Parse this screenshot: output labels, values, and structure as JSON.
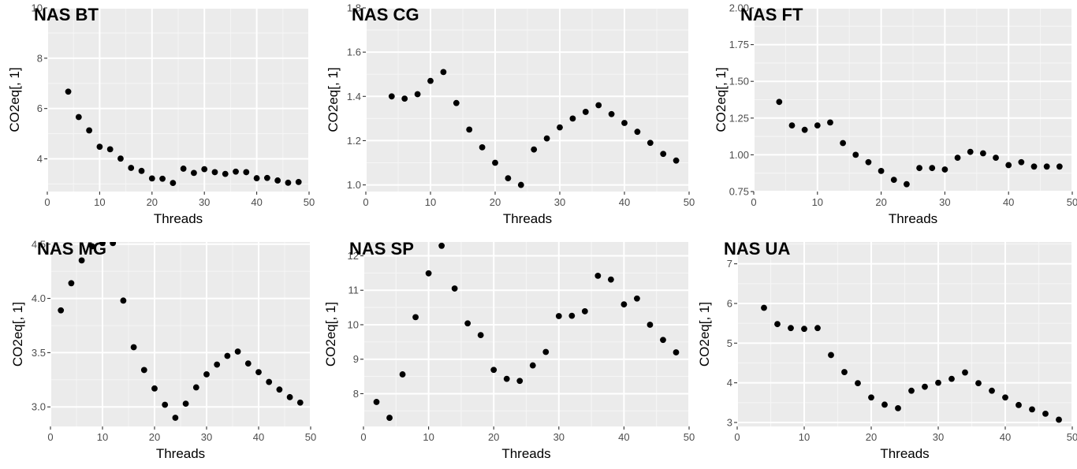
{
  "chart_data": [
    {
      "type": "scatter",
      "title": "NAS BT",
      "xlabel": "Threads",
      "ylabel": "CO2eq[, 1]",
      "xlim": [
        0,
        50
      ],
      "ylim": [
        2.7,
        10
      ],
      "xticks": [
        "0",
        "10",
        "20",
        "30",
        "40",
        "50"
      ],
      "yticks": [
        "4",
        "6",
        "8",
        "10"
      ],
      "grid": true,
      "x": [
        4,
        6,
        8,
        10,
        12,
        14,
        16,
        18,
        20,
        22,
        24,
        26,
        28,
        30,
        32,
        34,
        36,
        38,
        40,
        42,
        44,
        46,
        48
      ],
      "y": [
        6.67,
        5.66,
        5.13,
        4.48,
        4.38,
        4.01,
        3.64,
        3.52,
        3.22,
        3.21,
        3.04,
        3.61,
        3.44,
        3.59,
        3.47,
        3.4,
        3.49,
        3.47,
        3.23,
        3.24,
        3.14,
        3.05,
        3.08
      ]
    },
    {
      "type": "scatter",
      "title": "NAS CG",
      "xlabel": "Threads",
      "ylabel": "CO2eq[, 1]",
      "xlim": [
        0,
        50
      ],
      "ylim": [
        0.97,
        1.8
      ],
      "xticks": [
        "0",
        "10",
        "20",
        "30",
        "40",
        "50"
      ],
      "yticks": [
        "1.0",
        "1.2",
        "1.4",
        "1.6",
        "1.8"
      ],
      "grid": true,
      "x": [
        4,
        6,
        8,
        10,
        12,
        14,
        16,
        18,
        20,
        22,
        24,
        26,
        28,
        30,
        32,
        34,
        36,
        38,
        40,
        42,
        44,
        46,
        48
      ],
      "y": [
        1.4,
        1.39,
        1.41,
        1.47,
        1.51,
        1.37,
        1.25,
        1.17,
        1.1,
        1.03,
        1.0,
        1.16,
        1.21,
        1.26,
        1.3,
        1.33,
        1.36,
        1.32,
        1.28,
        1.24,
        1.19,
        1.14,
        1.11
      ]
    },
    {
      "type": "scatter",
      "title": "NAS FT",
      "xlabel": "Threads",
      "ylabel": "CO2eq[, 1]",
      "xlim": [
        0,
        50
      ],
      "ylim": [
        0.75,
        2.0
      ],
      "xticks": [
        "0",
        "10",
        "20",
        "30",
        "40",
        "50"
      ],
      "yticks": [
        "0.75",
        "1.00",
        "1.25",
        "1.50",
        "1.75",
        "2.00"
      ],
      "grid": true,
      "x": [
        4,
        6,
        8,
        10,
        12,
        14,
        16,
        18,
        20,
        22,
        24,
        26,
        28,
        30,
        32,
        34,
        36,
        38,
        40,
        42,
        44,
        46,
        48
      ],
      "y": [
        1.36,
        1.2,
        1.17,
        1.2,
        1.22,
        1.08,
        1.0,
        0.95,
        0.89,
        0.83,
        0.8,
        0.91,
        0.91,
        0.9,
        0.98,
        1.02,
        1.01,
        0.98,
        0.93,
        0.95,
        0.92,
        0.92,
        0.92
      ]
    },
    {
      "type": "scatter",
      "title": "NAS MG",
      "xlabel": "Threads",
      "ylabel": "CO2eq[, 1]",
      "xlim": [
        0,
        50
      ],
      "ylim": [
        2.82,
        4.52
      ],
      "xticks": [
        "0",
        "10",
        "20",
        "30",
        "40",
        "50"
      ],
      "yticks": [
        "3.0",
        "3.5",
        "4.0",
        "4.5"
      ],
      "grid": true,
      "x": [
        2,
        4,
        6,
        8,
        10,
        12,
        14,
        16,
        18,
        20,
        22,
        24,
        26,
        28,
        30,
        32,
        34,
        36,
        38,
        40,
        42,
        44,
        46,
        48
      ],
      "y": [
        3.89,
        4.14,
        4.35,
        4.48,
        4.51,
        4.51,
        3.98,
        3.55,
        3.34,
        3.17,
        3.02,
        2.9,
        3.03,
        3.18,
        3.3,
        3.39,
        3.47,
        3.51,
        3.4,
        3.32,
        3.23,
        3.16,
        3.09,
        3.04
      ]
    },
    {
      "type": "scatter",
      "title": "NAS SP",
      "xlabel": "Threads",
      "ylabel": "CO2eq[, 1]",
      "xlim": [
        0,
        50
      ],
      "ylim": [
        7.05,
        12.4
      ],
      "xticks": [
        "0",
        "10",
        "20",
        "30",
        "40",
        "50"
      ],
      "yticks": [
        "8",
        "9",
        "10",
        "11",
        "12"
      ],
      "grid": true,
      "x": [
        2,
        4,
        6,
        8,
        10,
        12,
        14,
        16,
        18,
        20,
        22,
        24,
        26,
        28,
        30,
        32,
        34,
        36,
        38,
        40,
        42,
        44,
        46,
        48
      ],
      "y": [
        7.76,
        7.3,
        8.56,
        10.22,
        11.49,
        12.29,
        11.05,
        10.04,
        9.7,
        8.69,
        8.43,
        8.37,
        8.82,
        9.21,
        10.25,
        10.26,
        10.39,
        11.42,
        11.31,
        10.59,
        10.76,
        10.0,
        9.56,
        9.2
      ]
    },
    {
      "type": "scatter",
      "title": "NAS UA",
      "xlabel": "Threads",
      "ylabel": "CO2eq[, 1]",
      "xlim": [
        0,
        50
      ],
      "ylim": [
        2.9,
        7.55
      ],
      "xticks": [
        "0",
        "10",
        "20",
        "30",
        "40",
        "50"
      ],
      "yticks": [
        "3",
        "4",
        "5",
        "6",
        "7"
      ],
      "grid": true,
      "x": [
        4,
        6,
        8,
        10,
        12,
        14,
        16,
        18,
        20,
        22,
        24,
        26,
        28,
        30,
        32,
        34,
        36,
        38,
        40,
        42,
        44,
        46,
        48
      ],
      "y": [
        5.89,
        5.48,
        5.38,
        5.36,
        5.38,
        4.7,
        4.27,
        3.99,
        3.63,
        3.45,
        3.36,
        3.8,
        3.9,
        4.0,
        4.1,
        4.26,
        3.99,
        3.8,
        3.63,
        3.44,
        3.33,
        3.22,
        3.07
      ]
    }
  ],
  "colors": {
    "panel_background": "#ebebeb",
    "major_grid": "#ffffff",
    "minor_grid": "#f5f5f5",
    "point": "#000000",
    "tick_label": "#4d4d4d",
    "tick_mark": "#333333"
  }
}
